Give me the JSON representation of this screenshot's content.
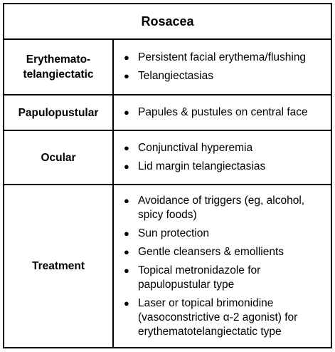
{
  "table": {
    "title": "Rosacea",
    "bullet_glyph": "●",
    "rows": [
      {
        "label": "Erythemato-\ntelangiectatic",
        "items": [
          "Persistent facial erythema/flushing",
          "Telangiectasias"
        ]
      },
      {
        "label": "Papulopustular",
        "items": [
          "Papules & pustules on central face"
        ]
      },
      {
        "label": "Ocular",
        "items": [
          "Conjunctival hyperemia",
          "Lid margin telangiectasias"
        ]
      },
      {
        "label": "Treatment",
        "items": [
          "Avoidance of triggers (eg, alcohol, spicy foods)",
          "Sun protection",
          "Gentle cleansers & emollients",
          "Topical metronidazole for papulopustular type",
          "Laser or topical brimonidine (vasoconstrictive α-2 agonist) for erythematotelangiectatic type"
        ]
      }
    ]
  }
}
